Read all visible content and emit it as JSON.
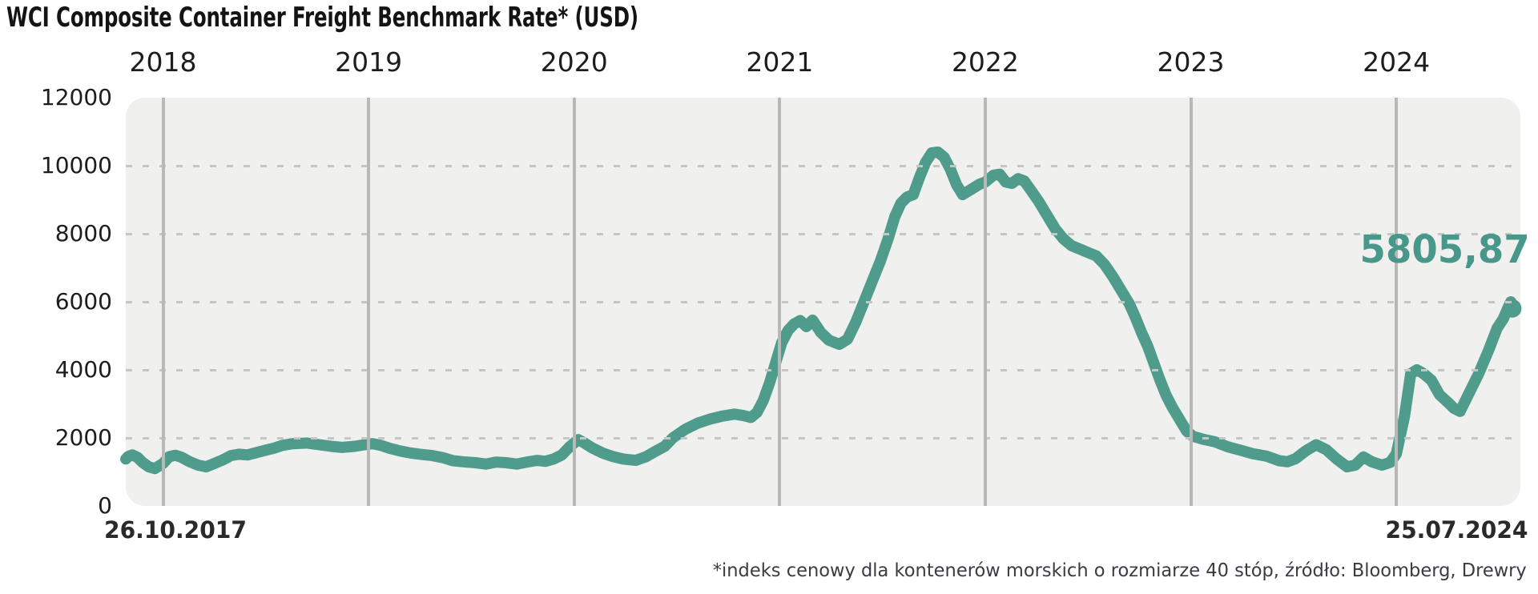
{
  "title": "WCI Composite Container Freight Benchmark Rate* (USD)",
  "footnote": "*indeks cenowy dla kontenerów morskich o rozmiarze 40 stóp, źródło: Bloomberg, Drewry",
  "current_value_label": "5805,87",
  "x_axis": {
    "start_label": "26.10.2017",
    "end_label": "25.07.2024",
    "years": [
      2018,
      2019,
      2020,
      2021,
      2022,
      2023,
      2024
    ]
  },
  "y_axis": {
    "ticks": [
      0,
      2000,
      4000,
      6000,
      8000,
      10000,
      12000
    ],
    "grid_values": [
      2000,
      4000,
      6000,
      8000,
      10000
    ]
  },
  "colors": {
    "line": "#4f9c8c",
    "accent_label": "#47988a",
    "plot_bg": "#f0f0ee",
    "grid_dash": "#c6c6c4",
    "grid_year": "#b8b8b6",
    "title_text": "#141414",
    "axis_text": "#1d1d1b",
    "date_text": "#2a2a2a",
    "footnote_text": "#3b3b43"
  },
  "chart_data": {
    "type": "line",
    "title": "WCI Composite Container Freight Benchmark Rate* (USD)",
    "xlabel": "date (26.10.2017 – 25.07.2024)",
    "ylabel": "USD",
    "ylim": [
      0,
      12000
    ],
    "xlim": [
      2017.8186,
      2024.5642
    ],
    "grid": "horizontal dashed every 2000, vertical solid at year starts",
    "legend": "none",
    "series_name": "WCI Composite Container Freight Benchmark Rate (USD)",
    "last_value": 5805.87,
    "points": [
      [
        2017.819,
        1380
      ],
      [
        2017.83,
        1450
      ],
      [
        2017.85,
        1500
      ],
      [
        2017.875,
        1430
      ],
      [
        2017.9,
        1280
      ],
      [
        2017.93,
        1150
      ],
      [
        2017.96,
        1100
      ],
      [
        2018.0,
        1250
      ],
      [
        2018.03,
        1450
      ],
      [
        2018.06,
        1490
      ],
      [
        2018.09,
        1430
      ],
      [
        2018.13,
        1300
      ],
      [
        2018.17,
        1200
      ],
      [
        2018.21,
        1150
      ],
      [
        2018.25,
        1250
      ],
      [
        2018.29,
        1350
      ],
      [
        2018.33,
        1480
      ],
      [
        2018.37,
        1520
      ],
      [
        2018.41,
        1500
      ],
      [
        2018.45,
        1560
      ],
      [
        2018.5,
        1640
      ],
      [
        2018.54,
        1700
      ],
      [
        2018.58,
        1780
      ],
      [
        2018.63,
        1830
      ],
      [
        2018.7,
        1850
      ],
      [
        2018.76,
        1800
      ],
      [
        2018.82,
        1750
      ],
      [
        2018.87,
        1720
      ],
      [
        2018.93,
        1750
      ],
      [
        2018.98,
        1800
      ],
      [
        2019.02,
        1830
      ],
      [
        2019.06,
        1780
      ],
      [
        2019.1,
        1700
      ],
      [
        2019.15,
        1620
      ],
      [
        2019.2,
        1560
      ],
      [
        2019.25,
        1520
      ],
      [
        2019.31,
        1480
      ],
      [
        2019.36,
        1420
      ],
      [
        2019.41,
        1330
      ],
      [
        2019.46,
        1300
      ],
      [
        2019.52,
        1270
      ],
      [
        2019.57,
        1230
      ],
      [
        2019.62,
        1290
      ],
      [
        2019.67,
        1270
      ],
      [
        2019.72,
        1230
      ],
      [
        2019.77,
        1290
      ],
      [
        2019.82,
        1340
      ],
      [
        2019.86,
        1310
      ],
      [
        2019.9,
        1380
      ],
      [
        2019.94,
        1500
      ],
      [
        2019.98,
        1750
      ],
      [
        2020.02,
        1950
      ],
      [
        2020.05,
        1850
      ],
      [
        2020.09,
        1700
      ],
      [
        2020.14,
        1550
      ],
      [
        2020.19,
        1450
      ],
      [
        2020.24,
        1380
      ],
      [
        2020.3,
        1340
      ],
      [
        2020.35,
        1450
      ],
      [
        2020.4,
        1620
      ],
      [
        2020.44,
        1750
      ],
      [
        2020.48,
        2000
      ],
      [
        2020.54,
        2250
      ],
      [
        2020.6,
        2430
      ],
      [
        2020.66,
        2550
      ],
      [
        2020.72,
        2640
      ],
      [
        2020.78,
        2700
      ],
      [
        2020.82,
        2660
      ],
      [
        2020.86,
        2600
      ],
      [
        2020.89,
        2750
      ],
      [
        2020.92,
        3100
      ],
      [
        2020.95,
        3600
      ],
      [
        2020.98,
        4200
      ],
      [
        2021.01,
        4800
      ],
      [
        2021.04,
        5150
      ],
      [
        2021.07,
        5350
      ],
      [
        2021.1,
        5450
      ],
      [
        2021.13,
        5270
      ],
      [
        2021.16,
        5460
      ],
      [
        2021.2,
        5100
      ],
      [
        2021.24,
        4870
      ],
      [
        2021.29,
        4750
      ],
      [
        2021.33,
        4900
      ],
      [
        2021.37,
        5400
      ],
      [
        2021.41,
        6000
      ],
      [
        2021.45,
        6600
      ],
      [
        2021.49,
        7200
      ],
      [
        2021.53,
        7900
      ],
      [
        2021.56,
        8500
      ],
      [
        2021.59,
        8900
      ],
      [
        2021.62,
        9080
      ],
      [
        2021.65,
        9150
      ],
      [
        2021.68,
        9650
      ],
      [
        2021.71,
        10100
      ],
      [
        2021.74,
        10380
      ],
      [
        2021.77,
        10400
      ],
      [
        2021.8,
        10250
      ],
      [
        2021.83,
        9900
      ],
      [
        2021.86,
        9450
      ],
      [
        2021.89,
        9150
      ],
      [
        2021.93,
        9300
      ],
      [
        2021.97,
        9450
      ],
      [
        2022.0,
        9520
      ],
      [
        2022.04,
        9720
      ],
      [
        2022.07,
        9750
      ],
      [
        2022.1,
        9520
      ],
      [
        2022.13,
        9480
      ],
      [
        2022.16,
        9620
      ],
      [
        2022.19,
        9550
      ],
      [
        2022.22,
        9300
      ],
      [
        2022.26,
        8950
      ],
      [
        2022.3,
        8550
      ],
      [
        2022.34,
        8150
      ],
      [
        2022.38,
        7850
      ],
      [
        2022.42,
        7650
      ],
      [
        2022.46,
        7550
      ],
      [
        2022.5,
        7450
      ],
      [
        2022.54,
        7350
      ],
      [
        2022.58,
        7100
      ],
      [
        2022.62,
        6750
      ],
      [
        2022.66,
        6350
      ],
      [
        2022.7,
        5950
      ],
      [
        2022.73,
        5550
      ],
      [
        2022.76,
        5100
      ],
      [
        2022.79,
        4700
      ],
      [
        2022.82,
        4200
      ],
      [
        2022.85,
        3700
      ],
      [
        2022.88,
        3250
      ],
      [
        2022.91,
        2900
      ],
      [
        2022.95,
        2500
      ],
      [
        2022.98,
        2200
      ],
      [
        2023.01,
        2050
      ],
      [
        2023.06,
        1960
      ],
      [
        2023.12,
        1880
      ],
      [
        2023.18,
        1740
      ],
      [
        2023.24,
        1640
      ],
      [
        2023.3,
        1540
      ],
      [
        2023.37,
        1460
      ],
      [
        2023.43,
        1330
      ],
      [
        2023.47,
        1300
      ],
      [
        2023.51,
        1390
      ],
      [
        2023.56,
        1620
      ],
      [
        2023.61,
        1800
      ],
      [
        2023.66,
        1650
      ],
      [
        2023.71,
        1380
      ],
      [
        2023.76,
        1150
      ],
      [
        2023.8,
        1200
      ],
      [
        2023.84,
        1440
      ],
      [
        2023.88,
        1300
      ],
      [
        2023.93,
        1200
      ],
      [
        2023.97,
        1280
      ],
      [
        2024.0,
        1530
      ],
      [
        2024.04,
        2640
      ],
      [
        2024.07,
        3890
      ],
      [
        2024.1,
        4000
      ],
      [
        2024.13,
        3900
      ],
      [
        2024.17,
        3700
      ],
      [
        2024.21,
        3270
      ],
      [
        2024.25,
        3050
      ],
      [
        2024.28,
        2870
      ],
      [
        2024.31,
        2780
      ],
      [
        2024.35,
        3270
      ],
      [
        2024.4,
        3880
      ],
      [
        2024.45,
        4590
      ],
      [
        2024.49,
        5220
      ],
      [
        2024.52,
        5500
      ],
      [
        2024.545,
        5850
      ],
      [
        2024.557,
        6000
      ],
      [
        2024.564,
        5805.87
      ]
    ]
  }
}
